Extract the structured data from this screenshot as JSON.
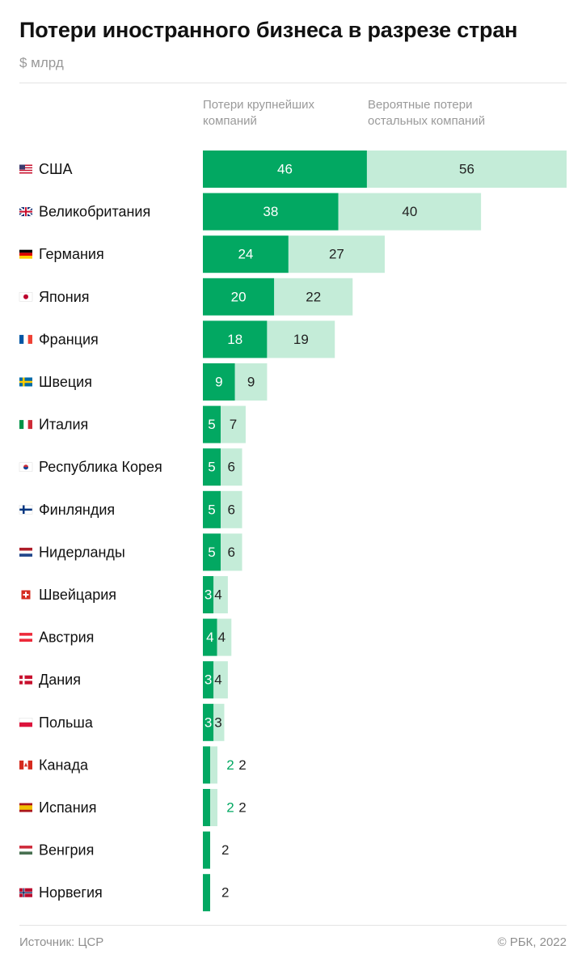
{
  "header": {
    "title": "Потери иностранного бизнеса в разрезе стран",
    "subtitle": "$ млрд"
  },
  "legend": {
    "major": "Потери крупнейших компаний",
    "other": "Вероятные потери остальных компаний"
  },
  "colors": {
    "major": "#02a862",
    "other": "#c4ecd8",
    "value_on_dark": "#ffffff",
    "value_on_light": "#222222",
    "value_outside_major": "#02a862"
  },
  "chart_data": {
    "type": "bar",
    "orientation": "horizontal",
    "stacked": true,
    "unit": "$ млрд",
    "categories": [
      "США",
      "Великобритания",
      "Германия",
      "Япония",
      "Франция",
      "Швеция",
      "Италия",
      "Республика Корея",
      "Финляндия",
      "Нидерланды",
      "Швейцария",
      "Австрия",
      "Дания",
      "Польша",
      "Канада",
      "Испания",
      "Венгрия",
      "Норвегия"
    ],
    "flags": [
      "us-flag-icon",
      "gb-flag-icon",
      "de-flag-icon",
      "jp-flag-icon",
      "fr-flag-icon",
      "se-flag-icon",
      "it-flag-icon",
      "kr-flag-icon",
      "fi-flag-icon",
      "nl-flag-icon",
      "ch-flag-icon",
      "at-flag-icon",
      "dk-flag-icon",
      "pl-flag-icon",
      "ca-flag-icon",
      "es-flag-icon",
      "hu-flag-icon",
      "no-flag-icon"
    ],
    "series": [
      {
        "name": "Потери крупнейших компаний",
        "values": [
          46,
          38,
          24,
          20,
          18,
          9,
          5,
          5,
          5,
          5,
          3,
          4,
          3,
          3,
          2,
          2,
          null,
          null
        ]
      },
      {
        "name": "Вероятные потери остальных компаний",
        "values": [
          56,
          40,
          27,
          22,
          19,
          9,
          7,
          6,
          6,
          6,
          4,
          4,
          4,
          3,
          2,
          2,
          2,
          2
        ]
      }
    ],
    "xlim": [
      0,
      102
    ],
    "grid": false,
    "legend_position": "top"
  },
  "footer": {
    "source": "Источник: ЦСР",
    "copyright": "© РБК, 2022"
  }
}
